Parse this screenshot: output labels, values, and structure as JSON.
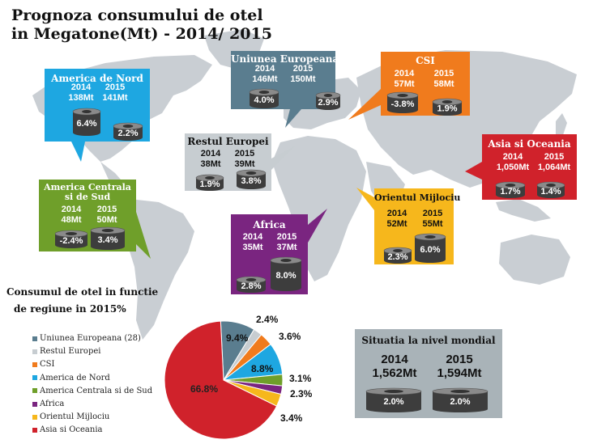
{
  "title": {
    "line1": "Prognoza consumului de otel",
    "line2": "in Megatone(Mt) - 2014/ 2015"
  },
  "colors": {
    "eu": "#5a7d8f",
    "rest_europe": "#c7cdd1",
    "csi": "#f07b1d",
    "north_america": "#1ea7e1",
    "central_south_america": "#6f9f2a",
    "africa": "#7a2580",
    "middle_east": "#f6b71c",
    "asia_oceania": "#d0222b",
    "world": "#a9b3b8",
    "map_land": "#c9ced3",
    "map_sea": "#ffffff"
  },
  "regions": {
    "eu": {
      "name": "Uniunea Europeana",
      "y1": "2014",
      "v1": "146Mt",
      "y2": "2015",
      "v2": "150Mt",
      "p1": "4.0%",
      "p2": "2.9%"
    },
    "csi": {
      "name": "CSI",
      "y1": "2014",
      "v1": "57Mt",
      "y2": "2015",
      "v2": "58Mt",
      "p1": "-3.8%",
      "p2": "1.9%"
    },
    "north_america": {
      "name": "America de Nord",
      "y1": "2014",
      "v1": "138Mt",
      "y2": "2015",
      "v2": "141Mt",
      "p1": "6.4%",
      "p2": "2.2%"
    },
    "rest_europe": {
      "name": "Restul Europei",
      "y1": "2014",
      "v1": "38Mt",
      "y2": "2015",
      "v2": "39Mt",
      "p1": "1.9%",
      "p2": "3.8%"
    },
    "asia_oceania": {
      "name": "Asia si Oceania",
      "y1": "2014",
      "v1": "1,050Mt",
      "y2": "2015",
      "v2": "1,064Mt",
      "p1": "1.7%",
      "p2": "1.4%"
    },
    "central_south_america": {
      "name1": "America Centrala",
      "name2": "si de Sud",
      "y1": "2014",
      "v1": "48Mt",
      "y2": "2015",
      "v2": "50Mt",
      "p1": "-2.4%",
      "p2": "3.4%"
    },
    "middle_east": {
      "name": "Orientul Mijlociu",
      "y1": "2014",
      "v1": "52Mt",
      "y2": "2015",
      "v2": "55Mt",
      "p1": "2.3%",
      "p2": "6.0%"
    },
    "africa": {
      "name": "Africa",
      "y1": "2014",
      "v1": "35Mt",
      "y2": "2015",
      "v2": "37Mt",
      "p1": "2.8%",
      "p2": "8.0%"
    }
  },
  "world": {
    "title": "Situatia la nivel mondial",
    "y1": "2014",
    "v1": "1,562Mt",
    "y2": "2015",
    "v2": "1,594Mt",
    "p1": "2.0%",
    "p2": "2.0%"
  },
  "pie_title": {
    "line1": "Consumul de otel in functie",
    "line2": "de regiune in 2015%"
  },
  "chart_data": {
    "type": "pie",
    "title": "Consumul de otel in functie de regiune in 2015%",
    "categories": [
      "Uniunea Europeana (28)",
      "Restul Europei",
      "CSI",
      "America de Nord",
      "America Centrala si de Sud",
      "Africa",
      "Orientul Mijlociu",
      "Asia si Oceania"
    ],
    "values": [
      9.4,
      2.4,
      3.6,
      8.8,
      3.1,
      2.3,
      3.4,
      66.8
    ],
    "labels": [
      "9.4%",
      "2.4%",
      "3.6%",
      "8.8%",
      "3.1%",
      "2.3%",
      "3.4%",
      "66.8%"
    ],
    "colors": [
      "#5a7d8f",
      "#c7cdd1",
      "#f07b1d",
      "#1ea7e1",
      "#6f9f2a",
      "#7a2580",
      "#f6b71c",
      "#d0222b"
    ],
    "legend_position": "left"
  }
}
